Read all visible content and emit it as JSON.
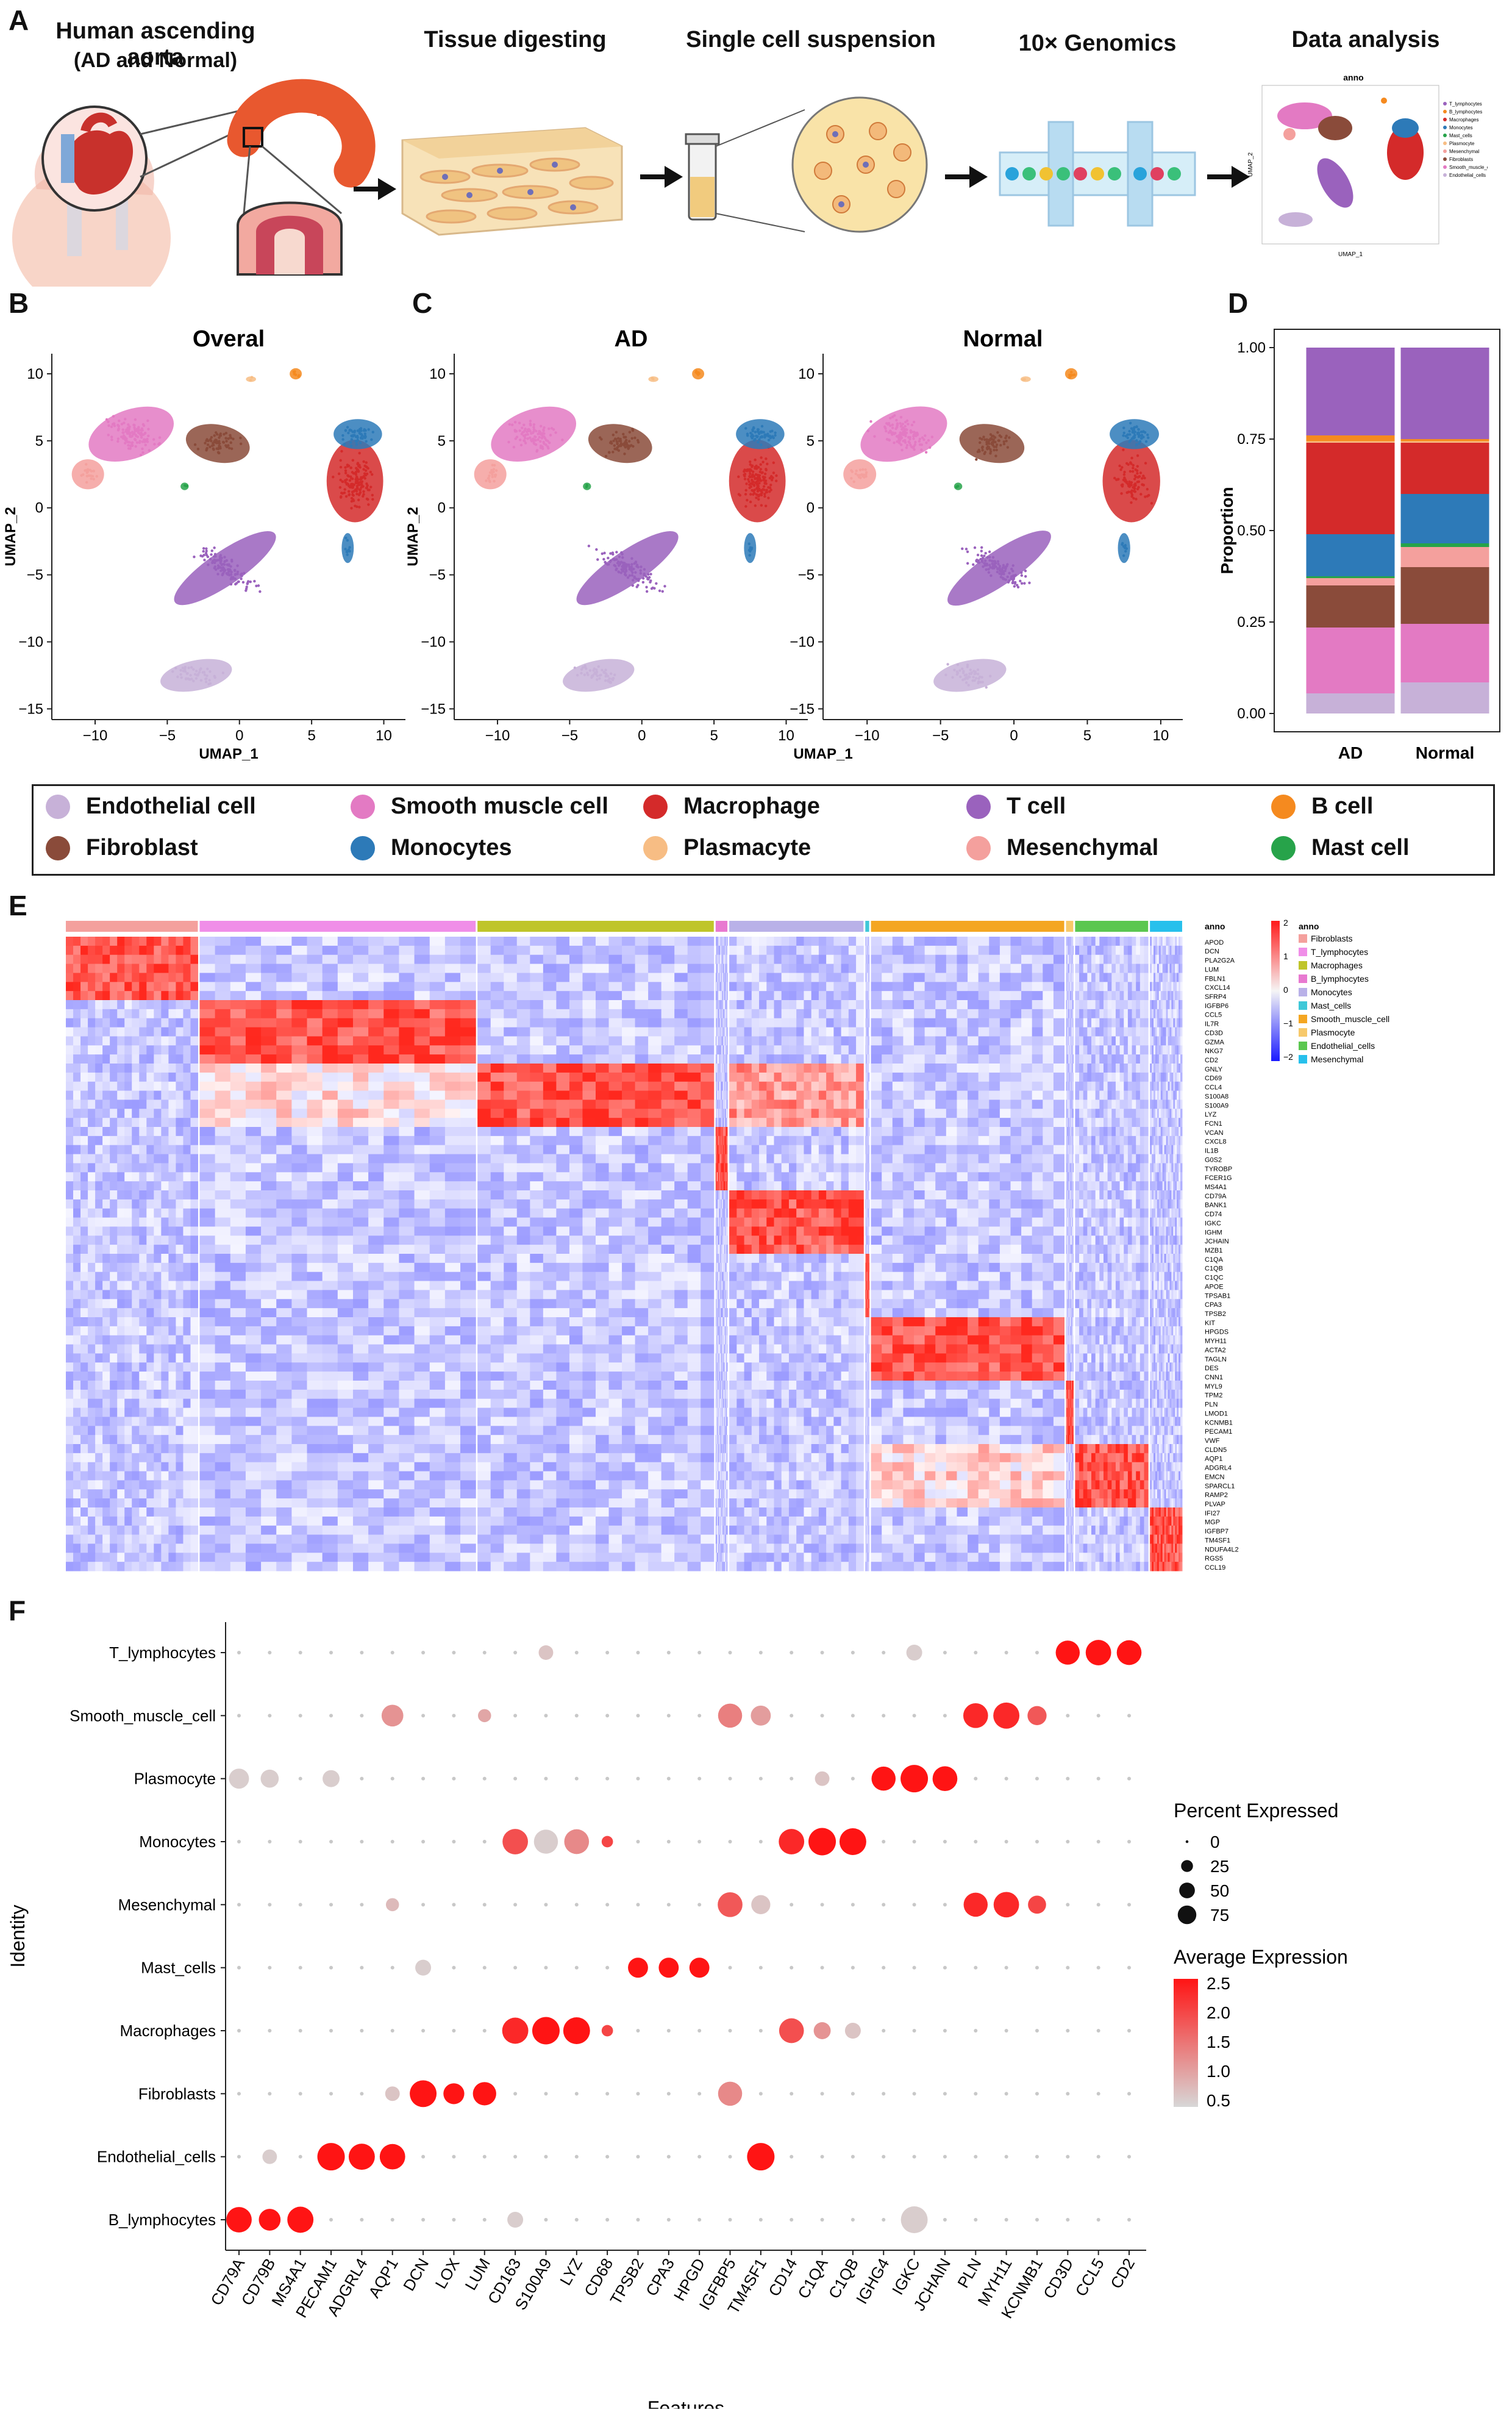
{
  "panels": {
    "A": "A",
    "B": "B",
    "C": "C",
    "D": "D",
    "E": "E",
    "F": "F"
  },
  "workflow": {
    "source_title": "Human ascending aorta",
    "source_sub": "(AD and Normal)",
    "steps": [
      "Tissue digesting",
      "Single cell suspension",
      "10× Genomics",
      "Data analysis"
    ],
    "mini_title": "anno",
    "mini_xlabel": "UMAP_1",
    "mini_ylabel": "UMAP_2",
    "mini_legend": [
      "T_lymphocytes",
      "B_lymphocytes",
      "Macrophages",
      "Monocytes",
      "Mast_cells",
      "Plasmocyte",
      "Mesenchymal",
      "Fibroblasts",
      "Smooth_muscle_cell",
      "Endothelial_cells"
    ]
  },
  "umap": {
    "overall_title": "Overal",
    "ad_title": "AD",
    "normal_title": "Normal",
    "xlabel": "UMAP_1",
    "ylabel": "UMAP_2",
    "xticks": [
      -10,
      -5,
      0,
      5,
      10
    ],
    "yticks": [
      10,
      5,
      0,
      -5,
      -10,
      -15
    ],
    "xtick_labels": [
      "−10",
      "−5",
      "0",
      "5",
      "10"
    ],
    "ytick_labels": [
      "10",
      "5",
      "0",
      "−5",
      "−10",
      "−15"
    ]
  },
  "colors": {
    "endothelial": "#c7b1d8",
    "smooth_muscle": "#e37ac3",
    "macrophage": "#d42a2a",
    "t_cell": "#9a62bd",
    "b_cell": "#f58a1f",
    "fibroblast": "#8a4b3a",
    "monocytes": "#2d7ab8",
    "plasmacyte": "#f7bd84",
    "mesenchymal": "#f4a09d",
    "mast": "#27a34a"
  },
  "cell_legend": [
    {
      "label": "Endothelial cell",
      "color": "#c7b1d8"
    },
    {
      "label": "Smooth muscle cell",
      "color": "#e37ac3"
    },
    {
      "label": "Macrophage",
      "color": "#d42a2a"
    },
    {
      "label": "T cell",
      "color": "#9a62bd"
    },
    {
      "label": "B cell",
      "color": "#f58a1f"
    },
    {
      "label": "Fibroblast",
      "color": "#8a4b3a"
    },
    {
      "label": "Monocytes",
      "color": "#2d7ab8"
    },
    {
      "label": "Plasmacyte",
      "color": "#f7bd84"
    },
    {
      "label": "Mesenchymal",
      "color": "#f4a09d"
    },
    {
      "label": "Mast cell",
      "color": "#27a34a"
    }
  ],
  "chart_data": [
    {
      "type": "bar",
      "panel": "D",
      "ylabel": "Proportion",
      "categories": [
        "AD",
        "Normal"
      ],
      "ylim": [
        0,
        1
      ],
      "yticks": [
        0.0,
        0.25,
        0.5,
        0.75,
        1.0
      ],
      "ytick_labels": [
        "0.00",
        "0.25",
        "0.50",
        "0.75",
        "1.00"
      ],
      "stacked": true,
      "series": [
        {
          "color": "#c7b1d8",
          "values": [
            0.055,
            0.085
          ]
        },
        {
          "color": "#e37ac3",
          "values": [
            0.18,
            0.16
          ]
        },
        {
          "color": "#8a4b3a",
          "values": [
            0.115,
            0.155
          ]
        },
        {
          "color": "#f4a09d",
          "values": [
            0.02,
            0.055
          ]
        },
        {
          "color": "#27a34a",
          "values": [
            0.005,
            0.01
          ]
        },
        {
          "color": "#2d7ab8",
          "values": [
            0.115,
            0.135
          ]
        },
        {
          "color": "#d42a2a",
          "values": [
            0.25,
            0.14
          ]
        },
        {
          "color": "#f7bd84",
          "values": [
            0.004,
            0.004
          ]
        },
        {
          "color": "#f58a1f",
          "values": [
            0.016,
            0.006
          ]
        },
        {
          "color": "#9a62bd",
          "values": [
            0.24,
            0.25
          ]
        }
      ]
    },
    {
      "type": "heatmap",
      "panel": "E",
      "legend_title": "anno",
      "scale_ticks": [
        "2",
        "1",
        "0",
        "−1",
        "−2"
      ],
      "groups": [
        {
          "name": "Fibroblasts",
          "color": "#f4a09d",
          "width": 0.118
        },
        {
          "name": "T_lymphocytes",
          "color": "#f08ee8",
          "width": 0.245
        },
        {
          "name": "Macrophages",
          "color": "#bfc52a",
          "width": 0.21
        },
        {
          "name": "B_lymphocytes",
          "color": "#e879d0",
          "width": 0.012
        },
        {
          "name": "Monocytes",
          "color": "#b9b1e8",
          "width": 0.12
        },
        {
          "name": "Mast_cells",
          "color": "#3fc8d8",
          "width": 0.005
        },
        {
          "name": "Smooth_muscle_cell",
          "color": "#f4a622",
          "width": 0.172
        },
        {
          "name": "Plasmocyte",
          "color": "#f7c96a",
          "width": 0.008
        },
        {
          "name": "Endothelial_cells",
          "color": "#5bc750",
          "width": 0.066
        },
        {
          "name": "Mesenchymal",
          "color": "#27c0ec",
          "width": 0.03
        }
      ],
      "genes": [
        "APOD",
        "DCN",
        "PLA2G2A",
        "LUM",
        "FBLN1",
        "CXCL14",
        "SFRP4",
        "IGFBP6",
        "CCL5",
        "IL7R",
        "CD3D",
        "GZMA",
        "NKG7",
        "CD2",
        "GNLY",
        "CD69",
        "CCL4",
        "S100A8",
        "S100A9",
        "LYZ",
        "FCN1",
        "VCAN",
        "CXCL8",
        "IL1B",
        "G0S2",
        "TYROBP",
        "FCER1G",
        "MS4A1",
        "CD79A",
        "BANK1",
        "CD74",
        "IGKC",
        "IGHM",
        "JCHAIN",
        "MZB1",
        "C1QA",
        "C1QB",
        "C1QC",
        "APOE",
        "TPSAB1",
        "CPA3",
        "TPSB2",
        "KIT",
        "HPGDS",
        "MYH11",
        "ACTA2",
        "TAGLN",
        "DES",
        "CNN1",
        "MYL9",
        "TPM2",
        "PLN",
        "LMOD1",
        "KCNMB1",
        "PECAM1",
        "VWF",
        "CLDN5",
        "AQP1",
        "ADGRL4",
        "EMCN",
        "SPARCL1",
        "RAMP2",
        "PLVAP",
        "IFI27",
        "MGP",
        "IGFBP7",
        "TM4SF1",
        "NDUFA4L2",
        "RGS5",
        "CCL19"
      ],
      "gene_labels": [
        "APOD",
        "DCN",
        "PLA2G2A",
        "LUM",
        "FBLN1",
        "CXCL14",
        "SFRP4",
        "IGFBP6",
        "CCL5",
        "IL7R",
        "CD3D",
        "GZMA",
        "NKG7",
        "CD2",
        "GNLY",
        "CD69",
        "CCL4",
        "S100A8",
        "S100A9",
        "LYZ",
        "FCN1",
        "VCAN",
        "CXCL8",
        "IL1B",
        "G0S2",
        "TYROBP",
        "FCER1G",
        "MS4A1",
        "CD79A",
        "BANK1",
        "CD74",
        "IGKC",
        "IGHM",
        "JCHAIN",
        "MZB1",
        "C1QA",
        "C1QB",
        "C1QC",
        "APOE",
        "TPSAB1",
        "CPA3",
        "TPSB2",
        "KIT",
        "HPGDS",
        "MYH11",
        "ACTA2",
        "TAGLN",
        "DES",
        "CNN1",
        "MYL9",
        "TPM2",
        "PLN",
        "LMOD1",
        "KCNMB1",
        "PECAM1",
        "VWF",
        "CLDN5",
        "AQP1",
        "ADGRL4",
        "EMCN",
        "SPARCL1",
        "RAMP2",
        "PLVAP",
        "IFI27",
        "MGP",
        "IGFBP7",
        "TM4SF1",
        "NDUFA4L2",
        "RGS5",
        "CCL19"
      ]
    },
    {
      "type": "scatter",
      "panel": "F",
      "xlabel": "Features",
      "ylabel": "Identity",
      "features": [
        "CD79A",
        "CD79B",
        "MS4A1",
        "PECAM1",
        "ADGRL4",
        "AQP1",
        "DCN",
        "LOX",
        "LUM",
        "CD163",
        "S100A9",
        "LYZ",
        "CD68",
        "TPSB2",
        "CPA3",
        "HPGD",
        "IGFBP5",
        "TM4SF1",
        "CD14",
        "C1QA",
        "C1QB",
        "IGHG4",
        "IGKC",
        "JCHAIN",
        "PLN",
        "MYH11",
        "KCNMB1",
        "CD3D",
        "CCL5",
        "CD2"
      ],
      "identities": [
        "T_lymphocytes",
        "Smooth_muscle_cell",
        "Plasmocyte",
        "Monocytes",
        "Mesenchymal",
        "Mast_cells",
        "Macrophages",
        "Fibroblasts",
        "Endothelial_cells",
        "B_lymphocytes"
      ],
      "size_legend_title": "Percent Expressed",
      "size_legend": [
        0,
        25,
        50,
        75
      ],
      "size_legend_labels": [
        "0",
        "25",
        "50",
        "75"
      ],
      "color_legend_title": "Average Expression",
      "color_legend": [
        2.5,
        2.0,
        1.5,
        1.0,
        0.5
      ],
      "color_legend_labels": [
        "2.5",
        "2.0",
        "1.5",
        "1.0",
        "0.5"
      ],
      "highlights": [
        {
          "identity": "T_lymphocytes",
          "feature": "CD3D",
          "pct": 70,
          "avg": 2.5
        },
        {
          "identity": "T_lymphocytes",
          "feature": "CCL5",
          "pct": 80,
          "avg": 2.5
        },
        {
          "identity": "T_lymphocytes",
          "feature": "CD2",
          "pct": 75,
          "avg": 2.5
        },
        {
          "identity": "T_lymphocytes",
          "feature": "S100A9",
          "pct": 20,
          "avg": 0.7
        },
        {
          "identity": "T_lymphocytes",
          "feature": "IGKC",
          "pct": 25,
          "avg": 0.6
        },
        {
          "identity": "Smooth_muscle_cell",
          "feature": "AQP1",
          "pct": 55,
          "avg": 1.2
        },
        {
          "identity": "Smooth_muscle_cell",
          "feature": "IGFBP5",
          "pct": 70,
          "avg": 1.4
        },
        {
          "identity": "Smooth_muscle_cell",
          "feature": "TM4SF1",
          "pct": 45,
          "avg": 1.1
        },
        {
          "identity": "Smooth_muscle_cell",
          "feature": "PLN",
          "pct": 75,
          "avg": 2.3
        },
        {
          "identity": "Smooth_muscle_cell",
          "feature": "MYH11",
          "pct": 85,
          "avg": 2.3
        },
        {
          "identity": "Smooth_muscle_cell",
          "feature": "KCNMB1",
          "pct": 40,
          "avg": 1.8
        },
        {
          "identity": "Smooth_muscle_cell",
          "feature": "LUM",
          "pct": 15,
          "avg": 1.0
        },
        {
          "identity": "Plasmocyte",
          "feature": "CD79A",
          "pct": 45,
          "avg": 0.6
        },
        {
          "identity": "Plasmocyte",
          "feature": "CD79B",
          "pct": 35,
          "avg": 0.6
        },
        {
          "identity": "Plasmocyte",
          "feature": "PECAM1",
          "pct": 30,
          "avg": 0.6
        },
        {
          "identity": "Plasmocyte",
          "feature": "IGHG4",
          "pct": 70,
          "avg": 2.5
        },
        {
          "identity": "Plasmocyte",
          "feature": "IGKC",
          "pct": 95,
          "avg": 2.5
        },
        {
          "identity": "Plasmocyte",
          "feature": "JCHAIN",
          "pct": 75,
          "avg": 2.5
        },
        {
          "identity": "Plasmocyte",
          "feature": "C1QA",
          "pct": 20,
          "avg": 0.7
        },
        {
          "identity": "Monocytes",
          "feature": "CD163",
          "pct": 80,
          "avg": 1.9
        },
        {
          "identity": "Monocytes",
          "feature": "S100A9",
          "pct": 70,
          "avg": 0.6
        },
        {
          "identity": "Monocytes",
          "feature": "LYZ",
          "pct": 75,
          "avg": 1.3
        },
        {
          "identity": "Monocytes",
          "feature": "CD68",
          "pct": 10,
          "avg": 2.0
        },
        {
          "identity": "Monocytes",
          "feature": "CD14",
          "pct": 80,
          "avg": 2.3
        },
        {
          "identity": "Monocytes",
          "feature": "C1QA",
          "pct": 95,
          "avg": 2.5
        },
        {
          "identity": "Monocytes",
          "feature": "C1QB",
          "pct": 90,
          "avg": 2.5
        },
        {
          "identity": "Mesenchymal",
          "feature": "IGFBP5",
          "pct": 75,
          "avg": 1.8
        },
        {
          "identity": "Mesenchymal",
          "feature": "TM4SF1",
          "pct": 40,
          "avg": 0.7
        },
        {
          "identity": "Mesenchymal",
          "feature": "PLN",
          "pct": 70,
          "avg": 2.3
        },
        {
          "identity": "Mesenchymal",
          "feature": "MYH11",
          "pct": 80,
          "avg": 2.3
        },
        {
          "identity": "Mesenchymal",
          "feature": "KCNMB1",
          "pct": 35,
          "avg": 2.0
        },
        {
          "identity": "Mesenchymal",
          "feature": "AQP1",
          "pct": 15,
          "avg": 0.8
        },
        {
          "identity": "Mast_cells",
          "feature": "TPSB2",
          "pct": 45,
          "avg": 2.5
        },
        {
          "identity": "Mast_cells",
          "feature": "CPA3",
          "pct": 45,
          "avg": 2.5
        },
        {
          "identity": "Mast_cells",
          "feature": "HPGD",
          "pct": 45,
          "avg": 2.5
        },
        {
          "identity": "Mast_cells",
          "feature": "DCN",
          "pct": 25,
          "avg": 0.6
        },
        {
          "identity": "Macrophages",
          "feature": "CD163",
          "pct": 85,
          "avg": 2.3
        },
        {
          "identity": "Macrophages",
          "feature": "S100A9",
          "pct": 95,
          "avg": 2.5
        },
        {
          "identity": "Macrophages",
          "feature": "LYZ",
          "pct": 90,
          "avg": 2.5
        },
        {
          "identity": "Macrophages",
          "feature": "CD68",
          "pct": 10,
          "avg": 2.0
        },
        {
          "identity": "Macrophages",
          "feature": "CD14",
          "pct": 75,
          "avg": 1.9
        },
        {
          "identity": "Macrophages",
          "feature": "C1QA",
          "pct": 30,
          "avg": 1.2
        },
        {
          "identity": "Macrophages",
          "feature": "C1QB",
          "pct": 25,
          "avg": 0.7
        },
        {
          "identity": "Fibroblasts",
          "feature": "DCN",
          "pct": 90,
          "avg": 2.5
        },
        {
          "identity": "Fibroblasts",
          "feature": "LOX",
          "pct": 50,
          "avg": 2.5
        },
        {
          "identity": "Fibroblasts",
          "feature": "LUM",
          "pct": 65,
          "avg": 2.5
        },
        {
          "identity": "Fibroblasts",
          "feature": "IGFBP5",
          "pct": 70,
          "avg": 1.3
        },
        {
          "identity": "Fibroblasts",
          "feature": "AQP1",
          "pct": 20,
          "avg": 0.7
        },
        {
          "identity": "Endothelial_cells",
          "feature": "PECAM1",
          "pct": 95,
          "avg": 2.5
        },
        {
          "identity": "Endothelial_cells",
          "feature": "ADGRL4",
          "pct": 85,
          "avg": 2.5
        },
        {
          "identity": "Endothelial_cells",
          "feature": "AQP1",
          "pct": 80,
          "avg": 2.5
        },
        {
          "identity": "Endothelial_cells",
          "feature": "TM4SF1",
          "pct": 95,
          "avg": 2.5
        },
        {
          "identity": "Endothelial_cells",
          "feature": "CD79B",
          "pct": 20,
          "avg": 0.6
        },
        {
          "identity": "B_lymphocytes",
          "feature": "CD79A",
          "pct": 80,
          "avg": 2.5
        },
        {
          "identity": "B_lymphocytes",
          "feature": "CD79B",
          "pct": 55,
          "avg": 2.5
        },
        {
          "identity": "B_lymphocytes",
          "feature": "MS4A1",
          "pct": 85,
          "avg": 2.5
        },
        {
          "identity": "B_lymphocytes",
          "feature": "IGKC",
          "pct": 90,
          "avg": 0.6
        },
        {
          "identity": "B_lymphocytes",
          "feature": "CD163",
          "pct": 25,
          "avg": 0.6
        }
      ]
    }
  ]
}
